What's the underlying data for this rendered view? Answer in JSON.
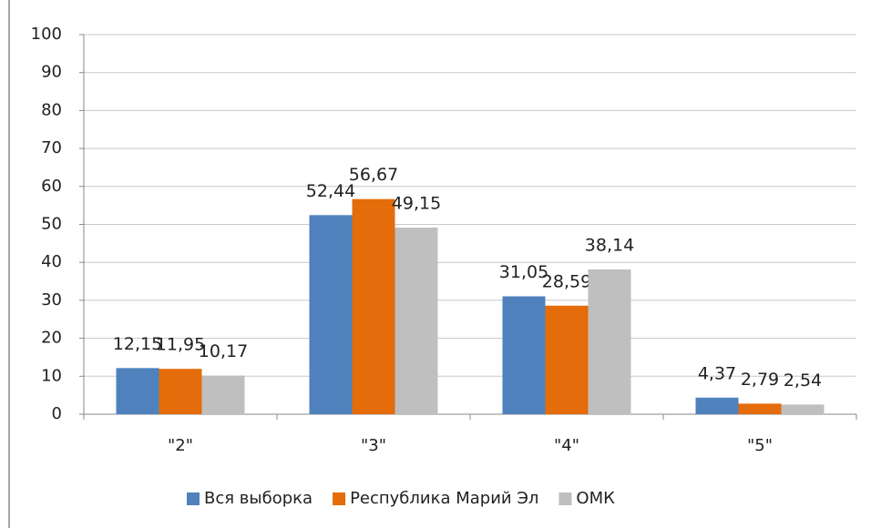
{
  "chart_data": {
    "type": "bar",
    "categories": [
      "\"2\"",
      "\"3\"",
      "\"4\"",
      "\"5\""
    ],
    "series": [
      {
        "name": "Вся выборка",
        "color": "#4f81bd",
        "values": [
          12.15,
          52.44,
          31.05,
          4.37
        ],
        "value_labels": [
          "12,15",
          "52,44",
          "31,05",
          "4,37"
        ]
      },
      {
        "name": "Республика Марий Эл",
        "color": "#e46c0a",
        "values": [
          11.95,
          56.67,
          28.59,
          2.79
        ],
        "value_labels": [
          "11,95",
          "56,67",
          "28,59",
          "2,79"
        ]
      },
      {
        "name": "ОМК",
        "color": "#bfbfbf",
        "values": [
          10.17,
          49.15,
          38.14,
          2.54
        ],
        "value_labels": [
          "10,17",
          "49,15",
          "38,14",
          "2,54"
        ]
      }
    ],
    "ylim": [
      0,
      100
    ],
    "yticks": [
      0,
      10,
      20,
      30,
      40,
      50,
      60,
      70,
      80,
      90,
      100
    ],
    "grid": true,
    "legend": "bottom"
  }
}
